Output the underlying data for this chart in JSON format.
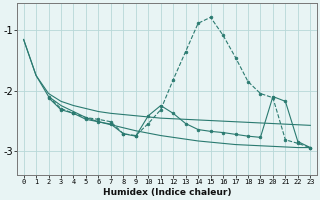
{
  "background_color": "#e8f4f4",
  "grid_color": "#b8d8d8",
  "line_color": "#2a7a70",
  "xlabel": "Humidex (Indice chaleur)",
  "xlim": [
    -0.5,
    23.5
  ],
  "ylim": [
    -3.4,
    -0.55
  ],
  "yticks": [
    -3,
    -2,
    -1
  ],
  "xticks": [
    0,
    1,
    2,
    3,
    4,
    5,
    6,
    7,
    8,
    9,
    10,
    11,
    12,
    13,
    14,
    15,
    16,
    17,
    18,
    19,
    20,
    21,
    22,
    23
  ],
  "series": [
    {
      "x": [
        0,
        1,
        2,
        3,
        4,
        5,
        6,
        7,
        8,
        9,
        10,
        11,
        12,
        13,
        14,
        15,
        16,
        17,
        18,
        19,
        20,
        21,
        22,
        23
      ],
      "y": [
        -1.15,
        -1.75,
        -2.05,
        -2.18,
        -2.25,
        -2.3,
        -2.35,
        -2.38,
        -2.4,
        -2.42,
        -2.44,
        -2.46,
        -2.47,
        -2.48,
        -2.49,
        -2.5,
        -2.51,
        -2.52,
        -2.53,
        -2.54,
        -2.55,
        -2.56,
        -2.57,
        -2.58
      ],
      "style": "solid",
      "marker": null
    },
    {
      "x": [
        0,
        1,
        2,
        3,
        4,
        5,
        6,
        7,
        8,
        9,
        10,
        11,
        12,
        13,
        14,
        15,
        16,
        17,
        18,
        19,
        20,
        21,
        22,
        23
      ],
      "y": [
        -1.15,
        -1.75,
        -2.1,
        -2.25,
        -2.35,
        -2.45,
        -2.52,
        -2.57,
        -2.62,
        -2.67,
        -2.71,
        -2.75,
        -2.78,
        -2.81,
        -2.84,
        -2.86,
        -2.88,
        -2.9,
        -2.91,
        -2.92,
        -2.93,
        -2.94,
        -2.95,
        -2.95
      ],
      "style": "solid",
      "marker": null
    },
    {
      "x": [
        2,
        3,
        4,
        5,
        6,
        7,
        8,
        9,
        10,
        11,
        12,
        13,
        14,
        15,
        16,
        17,
        18,
        19,
        20,
        21,
        22,
        23
      ],
      "y": [
        -2.1,
        -2.3,
        -2.38,
        -2.45,
        -2.48,
        -2.52,
        -2.72,
        -2.75,
        -2.55,
        -2.32,
        -1.82,
        -1.35,
        -0.88,
        -0.78,
        -1.08,
        -1.45,
        -1.85,
        -2.05,
        -2.12,
        -2.82,
        -2.88,
        -2.95
      ],
      "style": "dashed",
      "marker": "o"
    },
    {
      "x": [
        2,
        3,
        4,
        5,
        6,
        7,
        8,
        9,
        10,
        11,
        12,
        13,
        14,
        15,
        16,
        17,
        18,
        19,
        20,
        21,
        22,
        23
      ],
      "y": [
        -2.12,
        -2.32,
        -2.38,
        -2.48,
        -2.52,
        -2.56,
        -2.72,
        -2.76,
        -2.42,
        -2.25,
        -2.38,
        -2.55,
        -2.65,
        -2.68,
        -2.7,
        -2.73,
        -2.76,
        -2.78,
        -2.1,
        -2.18,
        -2.85,
        -2.95
      ],
      "style": "solid",
      "marker": "o"
    }
  ]
}
